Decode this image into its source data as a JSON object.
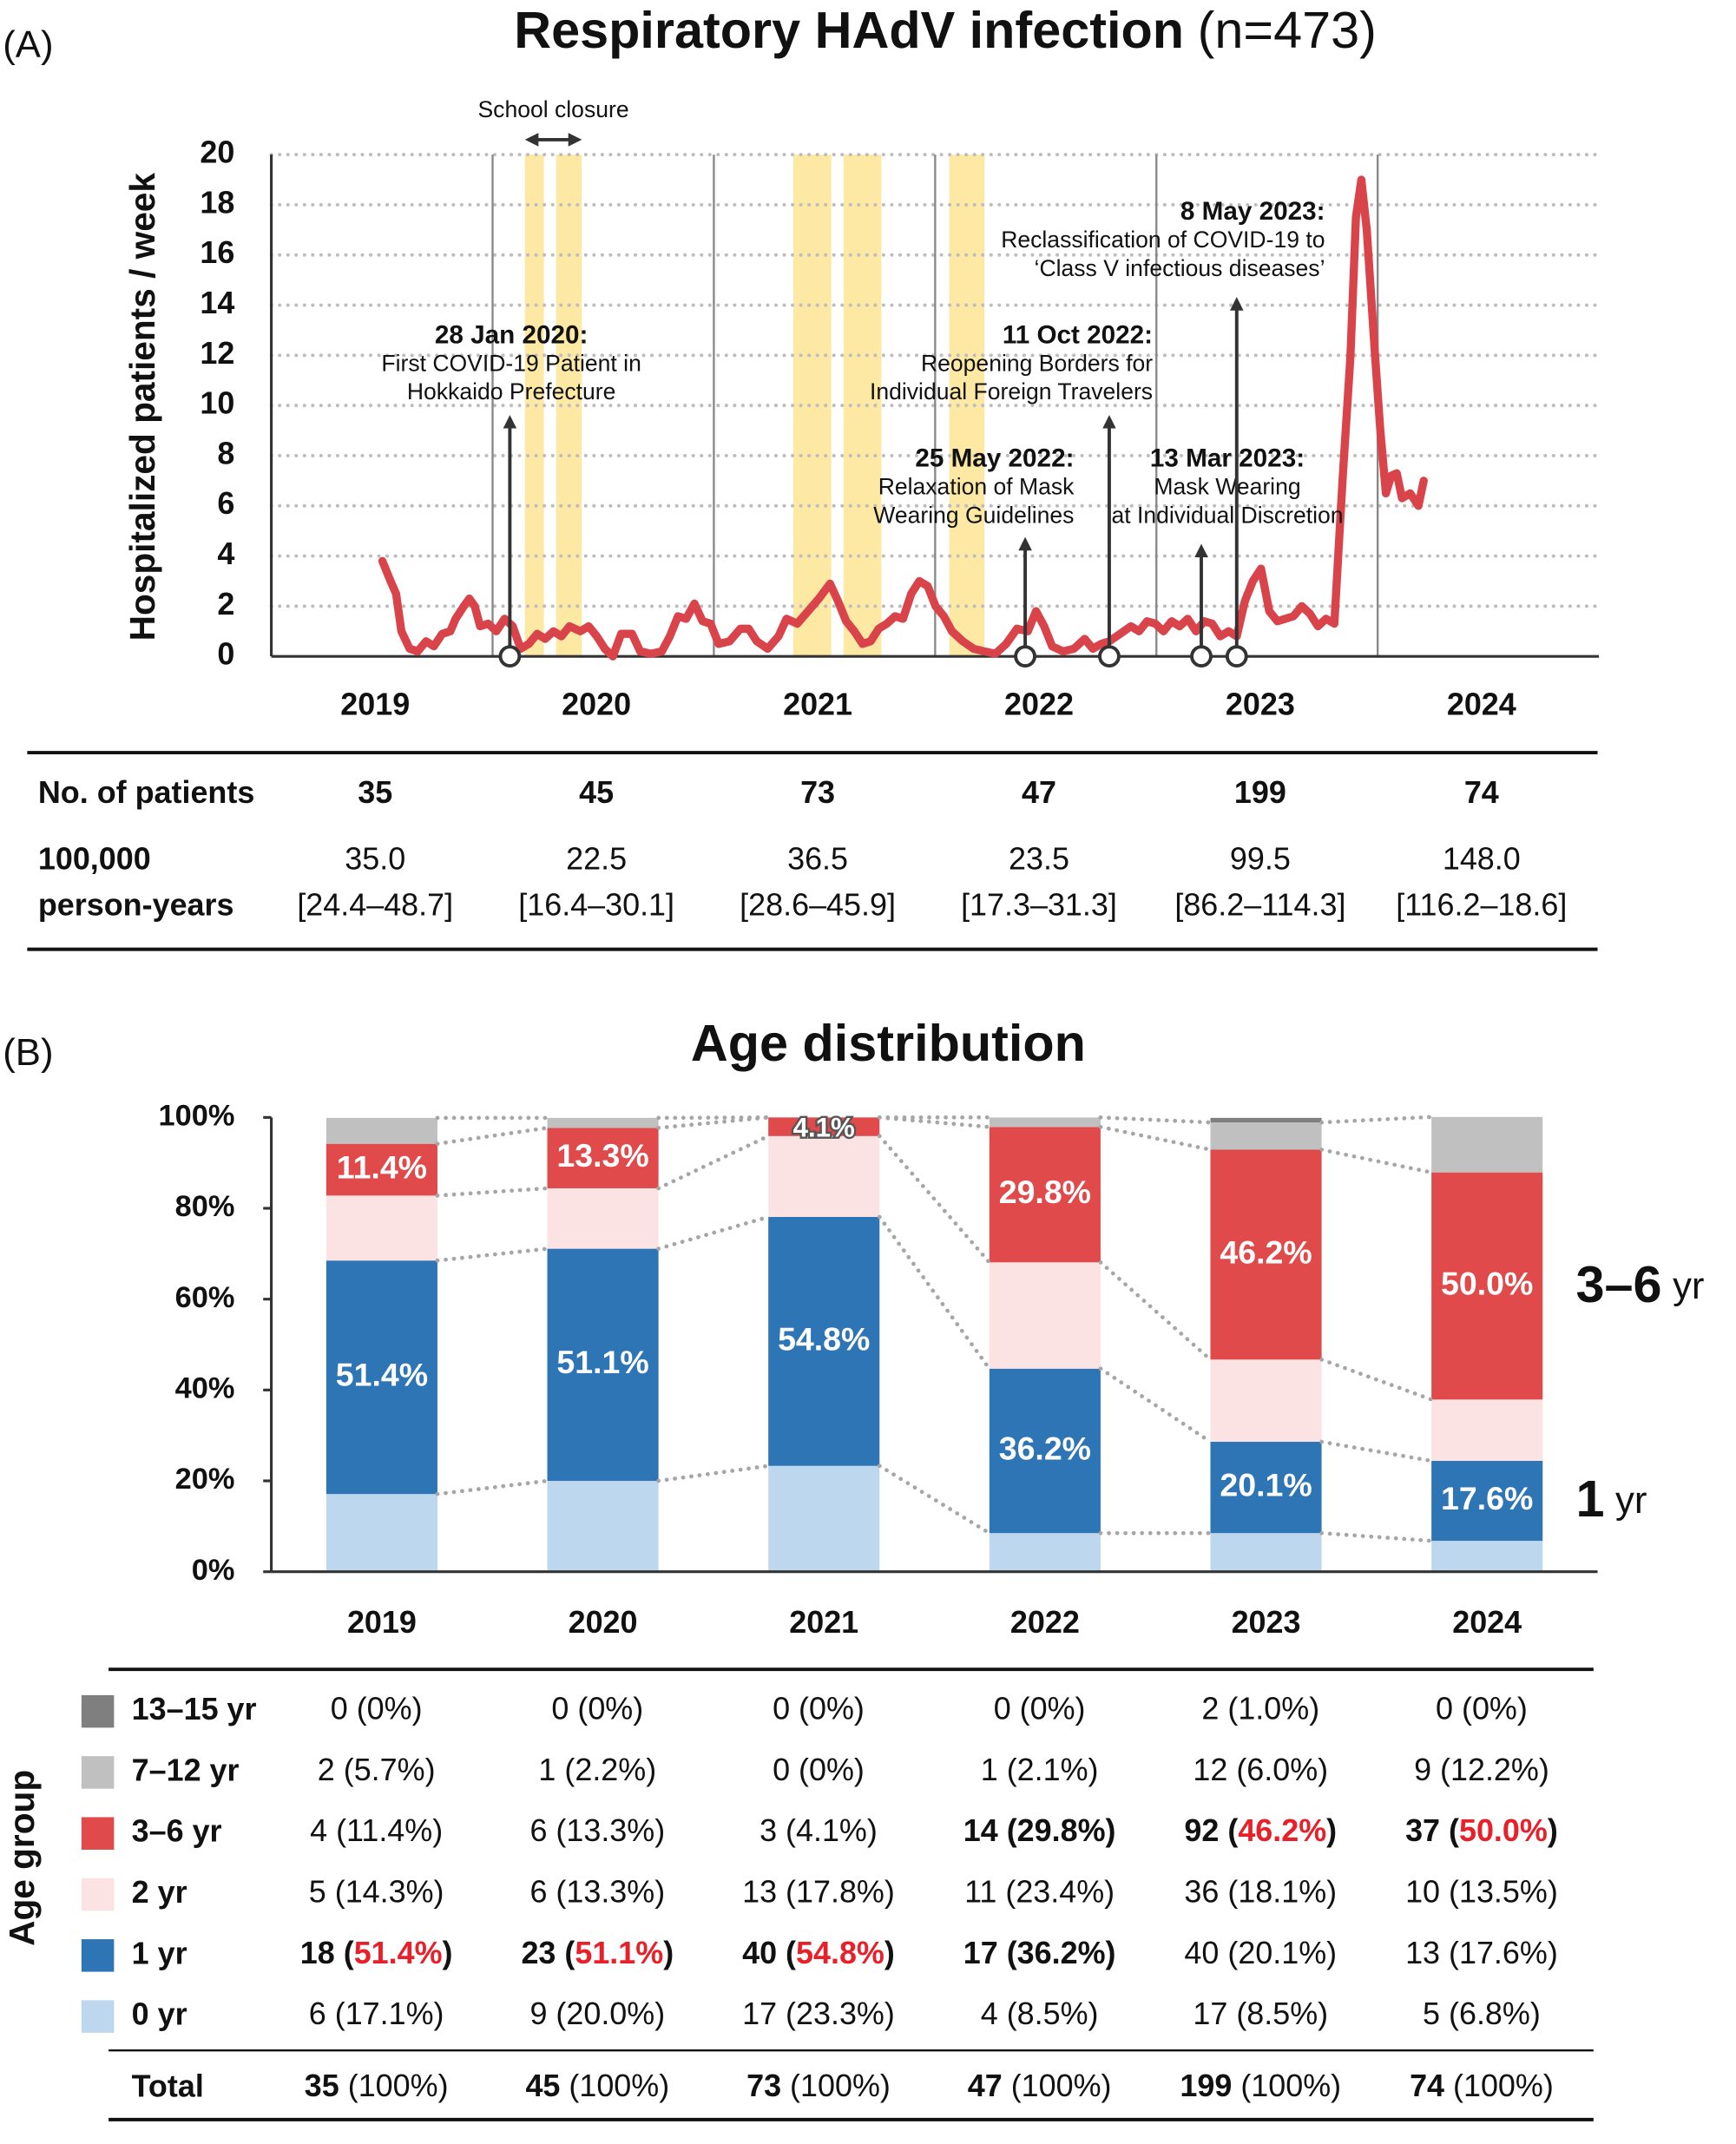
{
  "panels": [
    "(A)",
    "(B)"
  ],
  "chart_data": [
    {
      "type": "line",
      "title": "Respiratory HAdV infection",
      "title_note": "(n=473)",
      "ylabel": "Hospitalized patients / week",
      "categories": [
        "2019",
        "2020",
        "2021",
        "2022",
        "2023",
        "2024"
      ],
      "xlim": [
        2019,
        2025
      ],
      "xticks": [
        2020,
        2021,
        2022,
        2023,
        2024
      ],
      "ylim": [
        0,
        20
      ],
      "yticks": [
        0,
        2,
        4,
        6,
        8,
        10,
        12,
        14,
        16,
        18,
        20
      ],
      "grid": true,
      "color": "#d9434a",
      "x": [
        2019.502,
        2019.539,
        2019.564,
        2019.588,
        2019.625,
        2019.662,
        2019.699,
        2019.735,
        2019.772,
        2019.809,
        2019.833,
        2019.87,
        2019.895,
        2019.919,
        2019.944,
        2019.98,
        2020.017,
        2020.054,
        2020.091,
        2020.127,
        2020.164,
        2020.201,
        2020.238,
        2020.275,
        2020.311,
        2020.348,
        2020.397,
        2020.434,
        2020.471,
        2020.507,
        2020.544,
        2020.581,
        2020.63,
        2020.667,
        2020.716,
        2020.765,
        2020.801,
        2020.838,
        2020.875,
        2020.912,
        2020.949,
        2020.985,
        2021.022,
        2021.071,
        2021.12,
        2021.157,
        2021.194,
        2021.243,
        2021.292,
        2021.328,
        2021.377,
        2021.426,
        2021.475,
        2021.525,
        2021.561,
        2021.598,
        2021.635,
        2021.672,
        2021.708,
        2021.745,
        2021.782,
        2021.819,
        2021.855,
        2021.892,
        2021.929,
        2021.966,
        2022.002,
        2022.039,
        2022.076,
        2022.125,
        2022.174,
        2022.223,
        2022.272,
        2022.321,
        2022.37,
        2022.419,
        2022.456,
        2022.493,
        2022.529,
        2022.578,
        2022.627,
        2022.676,
        2022.713,
        2022.75,
        2022.787,
        2022.836,
        2022.885,
        2022.922,
        2022.958,
        2022.995,
        2023.032,
        2023.069,
        2023.105,
        2023.142,
        2023.179,
        2023.216,
        2023.252,
        2023.289,
        2023.326,
        2023.363,
        2023.4,
        2023.436,
        2023.473,
        2023.51,
        2023.547,
        2023.583,
        2023.62,
        2023.657,
        2023.694,
        2023.73,
        2023.767,
        2023.804,
        2023.841,
        2023.877,
        2023.902,
        2023.926,
        2023.951,
        2023.988,
        2024.012,
        2024.037,
        2024.061,
        2024.086,
        2024.11,
        2024.147,
        2024.184,
        2024.208
      ],
      "values": [
        3.8,
        3.0,
        2.5,
        1.0,
        0.3,
        0.2,
        0.6,
        0.4,
        0.9,
        1.0,
        1.5,
        2.0,
        2.3,
        2.0,
        1.2,
        1.3,
        1.0,
        1.5,
        1.2,
        0.3,
        0.5,
        0.9,
        0.7,
        1.0,
        0.8,
        1.2,
        1.0,
        1.2,
        0.8,
        0.3,
        0.0,
        0.9,
        0.9,
        0.2,
        0.1,
        0.2,
        0.8,
        1.6,
        1.5,
        2.1,
        1.4,
        1.3,
        0.5,
        0.6,
        1.1,
        1.1,
        0.6,
        0.3,
        0.8,
        1.5,
        1.3,
        1.8,
        2.3,
        2.9,
        2.2,
        1.4,
        1.0,
        0.5,
        0.6,
        1.1,
        1.3,
        1.6,
        1.5,
        2.5,
        3.0,
        2.8,
        2.0,
        1.6,
        1.0,
        0.6,
        0.3,
        0.2,
        0.1,
        0.5,
        1.1,
        1.0,
        1.8,
        1.2,
        0.4,
        0.2,
        0.3,
        0.7,
        0.3,
        0.5,
        0.6,
        0.9,
        1.2,
        1.0,
        1.4,
        1.3,
        1.0,
        1.4,
        1.2,
        1.5,
        1.0,
        1.4,
        1.3,
        0.8,
        1.0,
        0.8,
        2.2,
        3.0,
        3.5,
        1.8,
        1.4,
        1.5,
        1.6,
        2.0,
        1.7,
        1.2,
        1.5,
        1.3,
        7.0,
        12.0,
        17.5,
        19.0,
        17.0,
        12.0,
        9.0,
        6.5,
        7.2,
        7.3,
        6.3,
        6.5,
        6.0,
        7.0
      ],
      "shaded_periods": [
        [
          2020.146,
          2020.232
        ],
        [
          2020.287,
          2020.403
        ],
        [
          2021.359,
          2021.531
        ],
        [
          2021.586,
          2021.757
        ],
        [
          2022.064,
          2022.223
        ]
      ],
      "shade_color": "#fde9a3",
      "school_closure": "School closure",
      "events": [
        {
          "x": 2020.078,
          "title": "28 Jan 2020:",
          "lines": [
            "First COVID-19 Patient in",
            "Hokkaido Prefecture"
          ]
        },
        {
          "x": 2022.407,
          "title": "25 May 2022:",
          "lines": [
            "Relaxation of Mask",
            "Wearing Guidelines"
          ]
        },
        {
          "x": 2022.787,
          "title": "11 Oct 2022:",
          "lines": [
            "Reopening Borders for",
            "Individual Foreign Travelers"
          ]
        },
        {
          "x": 2023.203,
          "title": "13 Mar 2023:",
          "lines": [
            "Mask Wearing",
            "at Individual Discretion"
          ]
        },
        {
          "x": 2023.363,
          "title": "8 May 2023:",
          "lines": [
            "Reclassification of COVID-19 to",
            "‘Class V infectious diseases’"
          ]
        }
      ]
    },
    {
      "type": "bar",
      "stacked": true,
      "title": "Age distribution",
      "categories": [
        "2019",
        "2020",
        "2021",
        "2022",
        "2023",
        "2024"
      ],
      "ylim": [
        0,
        100
      ],
      "yticks": [
        {
          "value": 0,
          "label": "0%"
        },
        {
          "value": 20,
          "label": "20%"
        },
        {
          "value": 40,
          "label": "40%"
        },
        {
          "value": 60,
          "label": "60%"
        },
        {
          "value": 80,
          "label": "80%"
        },
        {
          "value": 100,
          "label": "100%"
        }
      ],
      "series": [
        {
          "name": "0 yr",
          "color": "#bdd7ee",
          "values": [
            17.1,
            20.0,
            23.3,
            8.5,
            8.5,
            6.8
          ]
        },
        {
          "name": "1 yr",
          "color": "#2e75b6",
          "values": [
            51.4,
            51.1,
            54.8,
            36.2,
            20.1,
            17.6
          ],
          "value_labels": [
            "51.4%",
            "51.1%",
            "54.8%",
            "36.2%",
            "20.1%",
            "17.6%"
          ]
        },
        {
          "name": "2 yr",
          "color": "#fbe3e3",
          "values": [
            14.3,
            13.3,
            17.8,
            23.4,
            18.1,
            13.5
          ]
        },
        {
          "name": "3–6 yr",
          "color": "#e04a4a",
          "values": [
            11.4,
            13.3,
            4.1,
            29.8,
            46.2,
            50.0
          ],
          "value_labels": [
            "11.4%",
            "13.3%",
            "4.1%",
            "29.8%",
            "46.2%",
            "50.0%"
          ]
        },
        {
          "name": "7–12 yr",
          "color": "#c0c0c0",
          "values": [
            5.7,
            2.2,
            0,
            2.1,
            6.0,
            12.2
          ]
        },
        {
          "name": "13–15 yr",
          "color": "#7f7f7f",
          "values": [
            0,
            0,
            0,
            0,
            1.0,
            0
          ]
        }
      ],
      "side_labels": [
        {
          "text": "3–6",
          "unit": "yr",
          "series": 3
        },
        {
          "text": "1",
          "unit": "yr",
          "series": 1
        }
      ]
    }
  ],
  "table_a": {
    "rows": [
      {
        "label": [
          "No. of patients"
        ],
        "bold": true,
        "cells": [
          [
            "35"
          ],
          [
            "45"
          ],
          [
            "73"
          ],
          [
            "47"
          ],
          [
            "199"
          ],
          [
            "74"
          ]
        ]
      },
      {
        "label": [
          "100,000",
          "person-years"
        ],
        "bold": false,
        "cells": [
          [
            "35.0",
            "[24.4–48.7]"
          ],
          [
            "22.5",
            "[16.4–30.1]"
          ],
          [
            "36.5",
            "[28.6–45.9]"
          ],
          [
            "23.5",
            "[17.3–31.3]"
          ],
          [
            "99.5",
            "[86.2–114.3]"
          ],
          [
            "148.0",
            "[116.2–18.6]"
          ]
        ]
      }
    ]
  },
  "table_b": {
    "row_header": "Age group",
    "rows": [
      {
        "series": 5,
        "cells": [
          [
            [
              "0 (0%)",
              "n"
            ]
          ],
          [
            [
              "0 (0%)",
              "n"
            ]
          ],
          [
            [
              "0 (0%)",
              "n"
            ]
          ],
          [
            [
              "0 (0%)",
              "n"
            ]
          ],
          [
            [
              "2 (1.0%)",
              "n"
            ]
          ],
          [
            [
              "0 (0%)",
              "n"
            ]
          ]
        ]
      },
      {
        "series": 4,
        "cells": [
          [
            [
              "2 (5.7%)",
              "n"
            ]
          ],
          [
            [
              "1 (2.2%)",
              "n"
            ]
          ],
          [
            [
              "0 (0%)",
              "n"
            ]
          ],
          [
            [
              "1 (2.1%)",
              "n"
            ]
          ],
          [
            [
              "12 (6.0%)",
              "n"
            ]
          ],
          [
            [
              "9 (12.2%)",
              "n"
            ]
          ]
        ]
      },
      {
        "series": 3,
        "cells": [
          [
            [
              "4 (11.4%)",
              "n"
            ]
          ],
          [
            [
              "6 (13.3%)",
              "n"
            ]
          ],
          [
            [
              "3 (4.1%)",
              "n"
            ]
          ],
          [
            [
              "14 (29.8%)",
              "b"
            ]
          ],
          [
            [
              "92 (",
              "b"
            ],
            [
              "46.2%",
              "r"
            ],
            [
              ")",
              "b"
            ]
          ],
          [
            [
              "37 (",
              "b"
            ],
            [
              "50.0%",
              "r"
            ],
            [
              ")",
              "b"
            ]
          ]
        ]
      },
      {
        "series": 2,
        "cells": [
          [
            [
              "5 (14.3%)",
              "n"
            ]
          ],
          [
            [
              "6 (13.3%)",
              "n"
            ]
          ],
          [
            [
              "13 (17.8%)",
              "n"
            ]
          ],
          [
            [
              "11 (23.4%)",
              "n"
            ]
          ],
          [
            [
              "36 (18.1%)",
              "n"
            ]
          ],
          [
            [
              "10 (13.5%)",
              "n"
            ]
          ]
        ]
      },
      {
        "series": 1,
        "cells": [
          [
            [
              "18 (",
              "b"
            ],
            [
              "51.4%",
              "r"
            ],
            [
              ")",
              "b"
            ]
          ],
          [
            [
              "23 (",
              "b"
            ],
            [
              "51.1%",
              "r"
            ],
            [
              ")",
              "b"
            ]
          ],
          [
            [
              "40 (",
              "b"
            ],
            [
              "54.8%",
              "r"
            ],
            [
              ")",
              "b"
            ]
          ],
          [
            [
              "17 (36.2%)",
              "b"
            ]
          ],
          [
            [
              "40 (20.1%)",
              "n"
            ]
          ],
          [
            [
              "13 (17.6%)",
              "n"
            ]
          ]
        ]
      },
      {
        "series": 0,
        "cells": [
          [
            [
              "6 (17.1%)",
              "n"
            ]
          ],
          [
            [
              "9 (20.0%)",
              "n"
            ]
          ],
          [
            [
              "17 (23.3%)",
              "n"
            ]
          ],
          [
            [
              "4 (8.5%)",
              "n"
            ]
          ],
          [
            [
              "17 (8.5%)",
              "n"
            ]
          ],
          [
            [
              "5 (6.8%)",
              "n"
            ]
          ]
        ]
      }
    ],
    "total": {
      "label": "Total",
      "cells": [
        [
          [
            "35",
            "b"
          ],
          [
            " (100%)",
            "n"
          ]
        ],
        [
          [
            "45",
            "b"
          ],
          [
            " (100%)",
            "n"
          ]
        ],
        [
          [
            "73",
            "b"
          ],
          [
            " (100%)",
            "n"
          ]
        ],
        [
          [
            "47",
            "b"
          ],
          [
            " (100%)",
            "n"
          ]
        ],
        [
          [
            "199",
            "b"
          ],
          [
            " (100%)",
            "n"
          ]
        ],
        [
          [
            "74",
            "b"
          ],
          [
            " (100%)",
            "n"
          ]
        ]
      ]
    }
  }
}
